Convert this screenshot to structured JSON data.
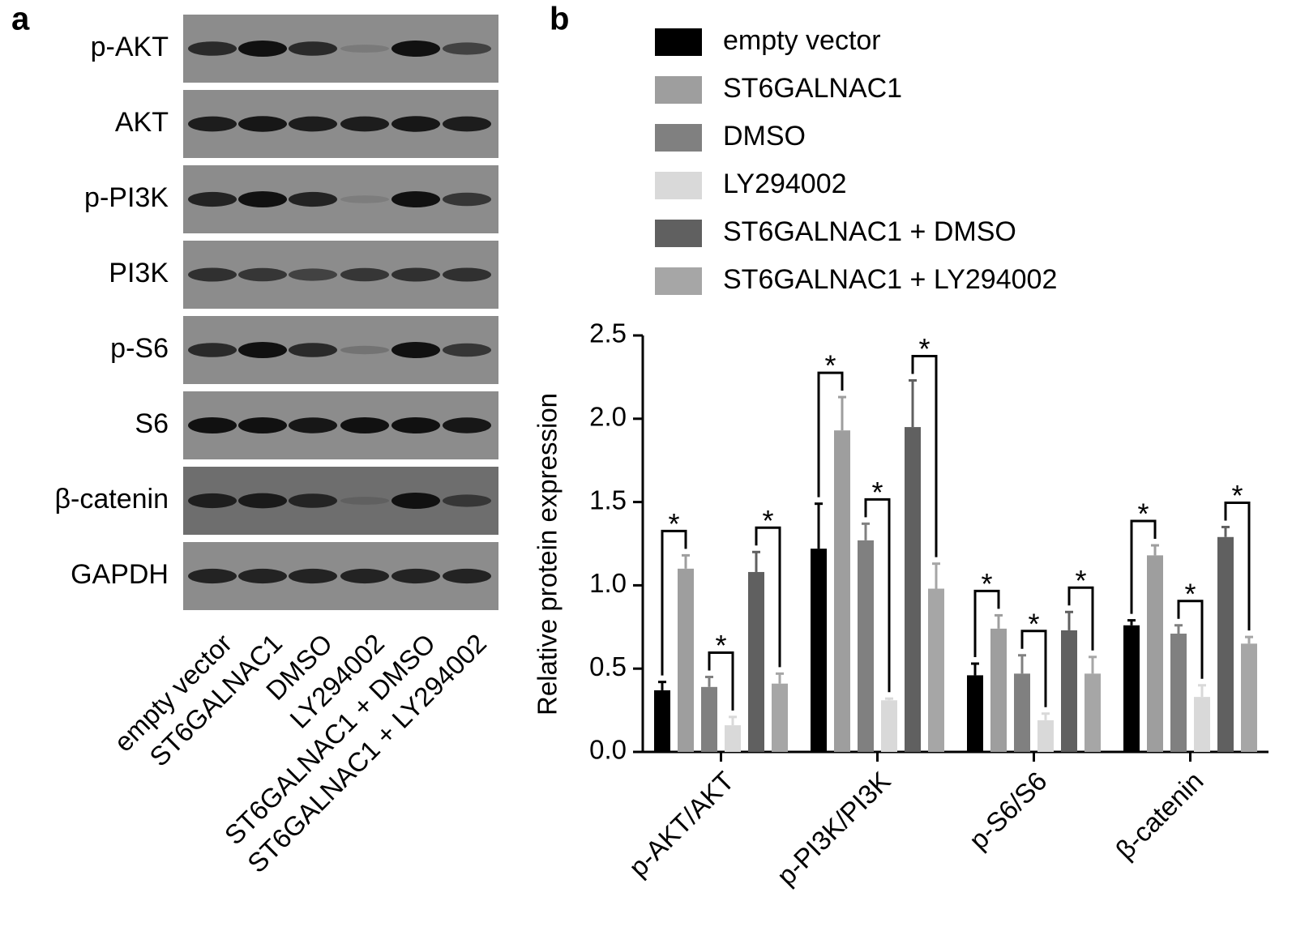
{
  "panel_a": {
    "label": "a",
    "rows": [
      "p-AKT",
      "AKT",
      "p-PI3K",
      "PI3K",
      "p-S6",
      "S6",
      "β-catenin",
      "GAPDH"
    ],
    "lanes": [
      "empty vector",
      "ST6GALNAC1",
      "DMSO",
      "LY294002",
      "ST6GALNAC1 + DMSO",
      "ST6GALNAC1 + LY294002"
    ]
  },
  "chart_data": {
    "type": "bar",
    "panel_label": "b",
    "ylabel": "Relative protein expression",
    "categories": [
      "p-AKT/AKT",
      "p-PI3K/PI3K",
      "p-S6/S6",
      "β-catenin"
    ],
    "series": [
      {
        "name": "empty vector",
        "color": "#000000",
        "values": [
          0.37,
          1.22,
          0.46,
          0.76
        ],
        "errors": [
          0.05,
          0.27,
          0.07,
          0.03
        ]
      },
      {
        "name": "ST6GALNAC1",
        "color": "#9e9e9e",
        "values": [
          1.1,
          1.93,
          0.74,
          1.18
        ],
        "errors": [
          0.08,
          0.2,
          0.08,
          0.06
        ]
      },
      {
        "name": "DMSO",
        "color": "#808080",
        "values": [
          0.39,
          1.27,
          0.47,
          0.71
        ],
        "errors": [
          0.06,
          0.1,
          0.11,
          0.05
        ]
      },
      {
        "name": "LY294002",
        "color": "#d9d9d9",
        "values": [
          0.16,
          0.31,
          0.19,
          0.33
        ],
        "errors": [
          0.05,
          0.01,
          0.04,
          0.07
        ]
      },
      {
        "name": "ST6GALNAC1 + DMSO",
        "color": "#606060",
        "values": [
          1.08,
          1.95,
          0.73,
          1.29
        ],
        "errors": [
          0.12,
          0.28,
          0.11,
          0.06
        ]
      },
      {
        "name": "ST6GALNAC1 + LY294002",
        "color": "#a6a6a6",
        "values": [
          0.41,
          0.98,
          0.47,
          0.65
        ],
        "errors": [
          0.06,
          0.15,
          0.1,
          0.04
        ]
      }
    ],
    "ylim": [
      0,
      2.5
    ],
    "yticks": [
      {
        "value": 0,
        "label": "0.0"
      },
      0.5,
      {
        "value": 1,
        "label": "1.0"
      },
      1.5,
      {
        "value": 2,
        "label": "2.0"
      },
      2.5
    ],
    "annotations": [
      {
        "text": "*",
        "category": 0,
        "series": [
          0,
          1
        ]
      },
      {
        "text": "*",
        "category": 0,
        "series": [
          2,
          3
        ]
      },
      {
        "text": "*",
        "category": 0,
        "series": [
          4,
          5
        ]
      },
      {
        "text": "*",
        "category": 1,
        "series": [
          0,
          1
        ]
      },
      {
        "text": "*",
        "category": 1,
        "series": [
          2,
          3
        ]
      },
      {
        "text": "*",
        "category": 1,
        "series": [
          4,
          5
        ]
      },
      {
        "text": "*",
        "category": 2,
        "series": [
          0,
          1
        ]
      },
      {
        "text": "*",
        "category": 2,
        "series": [
          2,
          3
        ]
      },
      {
        "text": "*",
        "category": 2,
        "series": [
          4,
          5
        ]
      },
      {
        "text": "*",
        "category": 3,
        "series": [
          0,
          1
        ]
      },
      {
        "text": "*",
        "category": 3,
        "series": [
          2,
          3
        ]
      },
      {
        "text": "*",
        "category": 3,
        "series": [
          4,
          5
        ]
      }
    ]
  }
}
